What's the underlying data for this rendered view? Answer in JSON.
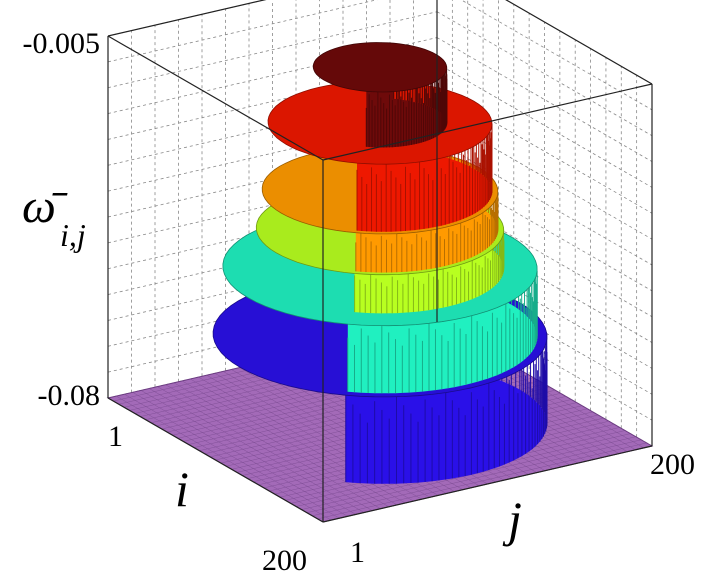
{
  "chart_data": {
    "type": "surface3d",
    "description_of_levels": "stepped radially symmetric dome, floor at -0.08 outside a circular region",
    "x_axis": {
      "label": "j",
      "ticks": [
        "1",
        "200"
      ],
      "range": [
        1,
        200
      ]
    },
    "y_axis": {
      "label": "i",
      "ticks": [
        "1",
        "200"
      ],
      "range": [
        1,
        200
      ]
    },
    "z_axis": {
      "label_main": "ω̄",
      "label_sub": "i,j",
      "ticks": [
        "-0.005",
        "-0.08"
      ],
      "range": [
        -0.08,
        -0.005
      ]
    },
    "grid": true,
    "levels": [
      {
        "z_from": -0.08,
        "z_to": -0.062,
        "radius": 85,
        "color": "#2a10e8"
      },
      {
        "z_from": -0.062,
        "z_to": -0.048,
        "radius": 80,
        "color": "#20f0c0"
      },
      {
        "z_from": -0.048,
        "z_to": -0.04,
        "radius": 63,
        "color": "#b8ff20"
      },
      {
        "z_from": -0.04,
        "z_to": -0.032,
        "radius": 60,
        "color": "#ff9a00"
      },
      {
        "z_from": -0.032,
        "z_to": -0.018,
        "radius": 57,
        "color": "#ee1800"
      },
      {
        "z_from": -0.018,
        "z_to": -0.0065,
        "radius": 34,
        "color": "#6e0a0a"
      }
    ],
    "floor_color": "#a36ab8",
    "floor_value": -0.08
  }
}
